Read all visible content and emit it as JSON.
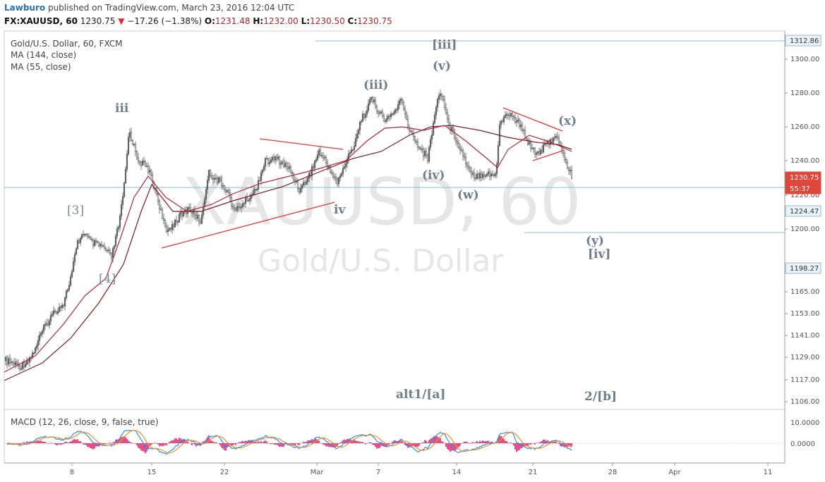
{
  "header": {
    "author": "Lawburo",
    "published": "published on TradingView.com, March 23, 2016 12:04 UTC",
    "symbol": "FX:XAUUSD, 60",
    "last": "1230.75",
    "change_arrow": "▼",
    "change": "−17.26 (−1.38%)",
    "o_label": "O:",
    "o": "1231.48",
    "h_label": "H:",
    "h": "1232.00",
    "l_label": "L:",
    "l": "1230.50",
    "c_label": "C:",
    "c": "1230.75"
  },
  "legend": {
    "title": "Gold/U.S. Dollar, 60, FXCM",
    "ma1": "MA (144, close)",
    "ma2": "MA (55, close)"
  },
  "watermark": {
    "big": "XAUUSD, 60",
    "small": "Gold/U.S. Dollar"
  },
  "macd": {
    "label": "MACD (12, 26, close, 9, false, true)",
    "ticks": [
      "10.0000",
      "0.0000"
    ]
  },
  "colors": {
    "candle": "#5a5a5a",
    "ma144": "#7b1f2a",
    "ma55": "#b0283c",
    "trend": "#e53935",
    "hline": "#7ec3d6",
    "macd": "#2f8fe6",
    "signal": "#f0902c",
    "hist": "#e0226c",
    "wave_label": "#6f7e8e"
  },
  "chart_data": {
    "type": "candlestick",
    "title": "Gold/U.S. Dollar, 60, FXCM",
    "price_ticks": [
      "1300.00",
      "1280.00",
      "1260.00",
      "1240.00",
      "1220.00",
      "1200.00",
      "1165.00",
      "1153.00",
      "1141.00",
      "1129.00",
      "1117.00",
      "1106.00"
    ],
    "x_ticks": [
      "8",
      "15",
      "22",
      "Mar",
      "7",
      "14",
      "21",
      "28",
      "Apr",
      "11"
    ],
    "price_tags": [
      {
        "label": "1312.86",
        "style": "light"
      },
      {
        "label": "1230.75",
        "style": "red"
      },
      {
        "label": "55:37",
        "style": "red"
      },
      {
        "label": "1224.47",
        "style": "light"
      },
      {
        "label": "1198.27",
        "style": "light"
      }
    ],
    "wave_labels": [
      "iii",
      "[3]",
      "[4]",
      "(iii)",
      "(iv)",
      "iv",
      "(v)",
      "[iii]",
      "(w)",
      "(x)",
      "(y)",
      "[iv]",
      "alt1/[a]",
      "2/[b]"
    ]
  }
}
